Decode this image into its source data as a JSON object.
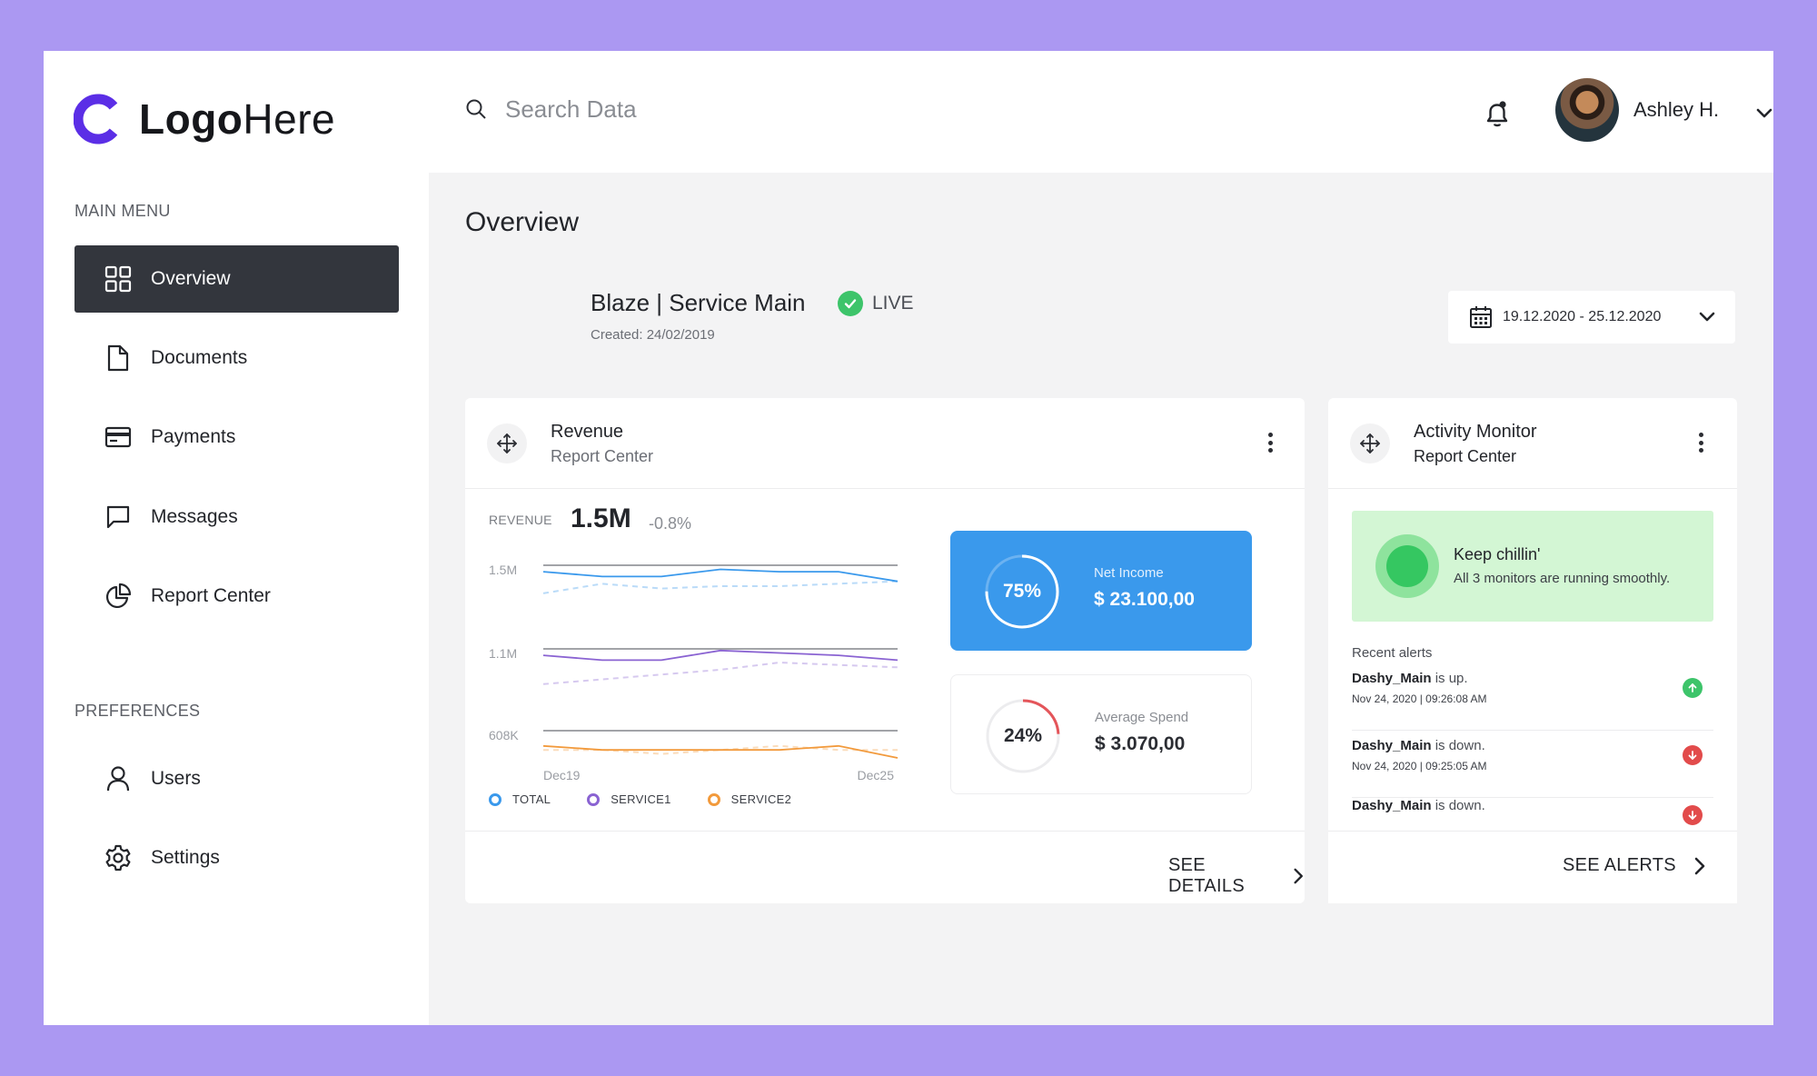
{
  "brand": {
    "logo_bold": "Logo",
    "logo_light": "Here",
    "accent": "#5b2ee6"
  },
  "sidebar": {
    "main_menu_label": "MAIN MENU",
    "preferences_label": "PREFERENCES",
    "items": [
      {
        "label": "Overview",
        "icon": "grid-icon",
        "active": true
      },
      {
        "label": "Documents",
        "icon": "document-icon"
      },
      {
        "label": "Payments",
        "icon": "credit-card-icon"
      },
      {
        "label": "Messages",
        "icon": "chat-icon"
      },
      {
        "label": "Report Center",
        "icon": "pie-chart-icon"
      }
    ],
    "pref_items": [
      {
        "label": "Users",
        "icon": "user-icon"
      },
      {
        "label": "Settings",
        "icon": "gear-icon"
      }
    ]
  },
  "header": {
    "search_placeholder": "Search Data",
    "user_name": "Ashley H."
  },
  "page": {
    "title": "Overview",
    "service_title": "Blaze | Service Main",
    "status": "LIVE",
    "created": "Created: 24/02/2019",
    "date_range": "19.12.2020 - 25.12.2020"
  },
  "revenue_card": {
    "title": "Revenue",
    "subtitle": "Report Center",
    "metric_label": "REVENUE",
    "metric_value": "1.5M",
    "metric_change": "-0.8%",
    "footer_link": "SEE DETAILS",
    "net_income": {
      "label": "Net Income",
      "value": "$ 23.100,00",
      "percent_label": "75%",
      "percent": 0.75
    },
    "avg_spend": {
      "label": "Average Spend",
      "value": "$ 3.070,00",
      "percent_label": "24%",
      "percent": 0.24
    }
  },
  "chart_data": {
    "type": "line",
    "x": [
      "Dec19",
      "Dec20",
      "Dec21",
      "Dec22",
      "Dec23",
      "Dec24",
      "Dec25"
    ],
    "x_tick_labels": [
      "Dec19",
      "Dec25"
    ],
    "y_tick_labels": [
      "1.5M",
      "1.1M",
      "608K"
    ],
    "legend": [
      "TOTAL",
      "SERVICE1",
      "SERVICE2"
    ],
    "legend_position": "bottom-left",
    "colors": {
      "TOTAL": "#3a99ec",
      "SERVICE1": "#8a63d2",
      "SERVICE2": "#f29a3c"
    },
    "panels": [
      {
        "series": "TOTAL",
        "values": [
          1.52,
          1.5,
          1.5,
          1.53,
          1.52,
          1.52,
          1.48
        ],
        "compare": [
          1.43,
          1.47,
          1.45,
          1.46,
          1.46,
          1.47,
          1.48
        ],
        "ylim": [
          1.35,
          1.6
        ]
      },
      {
        "series": "SERVICE1",
        "values": [
          1.12,
          1.1,
          1.1,
          1.14,
          1.13,
          1.12,
          1.1
        ],
        "compare": [
          1.0,
          1.02,
          1.04,
          1.06,
          1.09,
          1.08,
          1.07
        ],
        "ylim": [
          0.95,
          1.2
        ]
      },
      {
        "series": "SERVICE2",
        "values": [
          0.63,
          0.62,
          0.62,
          0.62,
          0.62,
          0.63,
          0.6
        ],
        "compare": [
          0.62,
          0.62,
          0.61,
          0.62,
          0.63,
          0.62,
          0.62
        ],
        "ylim": [
          0.55,
          0.7
        ]
      }
    ]
  },
  "activity_card": {
    "title": "Activity Monitor",
    "subtitle": "Report Center",
    "status_title": "Keep chillin'",
    "status_text": "All 3 monitors are running smoothly.",
    "alerts_title": "Recent alerts",
    "alerts": [
      {
        "name": "Dashy_Main",
        "text": " is up.",
        "time": "Nov 24, 2020 | 09:26:08 AM",
        "state": "up",
        "color": "#3dc46a"
      },
      {
        "name": "Dashy_Main",
        "text": " is down.",
        "time": "Nov 24, 2020 | 09:25:05 AM",
        "state": "down",
        "color": "#e24b4b"
      },
      {
        "name": "Dashy_Main",
        "text": " is down.",
        "time": "",
        "state": "down",
        "color": "#e24b4b"
      }
    ],
    "footer_link": "SEE ALERTS"
  }
}
